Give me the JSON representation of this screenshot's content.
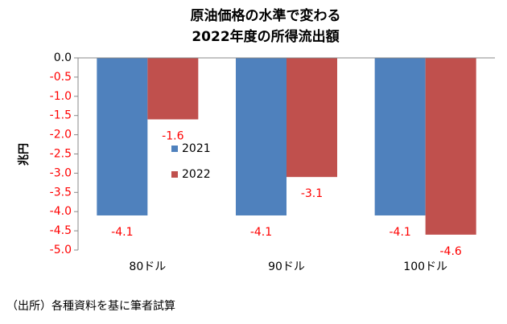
{
  "chart_data": {
    "type": "bar",
    "title": [
      "原油価格の水準で変わる",
      "2022年度の所得流出額"
    ],
    "y_label": "兆円",
    "categories": [
      "80ドル",
      "90ドル",
      "100ドル"
    ],
    "series": [
      {
        "name": "2021",
        "color": "#4f81bd",
        "values": [
          -4.1,
          -4.1,
          -4.1
        ]
      },
      {
        "name": "2022",
        "color": "#c0504d",
        "values": [
          -1.6,
          -3.1,
          -4.6
        ]
      }
    ],
    "ylim": [
      0,
      -5
    ],
    "yticks": [
      {
        "value": 0,
        "label": "0.0"
      },
      -0.5,
      {
        "value": -1,
        "label": "-1.0"
      },
      -1.5,
      {
        "value": -2,
        "label": "-2.0"
      },
      -2.5,
      {
        "value": -3,
        "label": "-3.0"
      },
      -3.5,
      {
        "value": -4,
        "label": "-4.0"
      },
      -4.5,
      {
        "value": -5,
        "label": "-5.0"
      }
    ],
    "negative_color": "#ff0000",
    "source": "（出所）各種資料を基に筆者試算"
  }
}
